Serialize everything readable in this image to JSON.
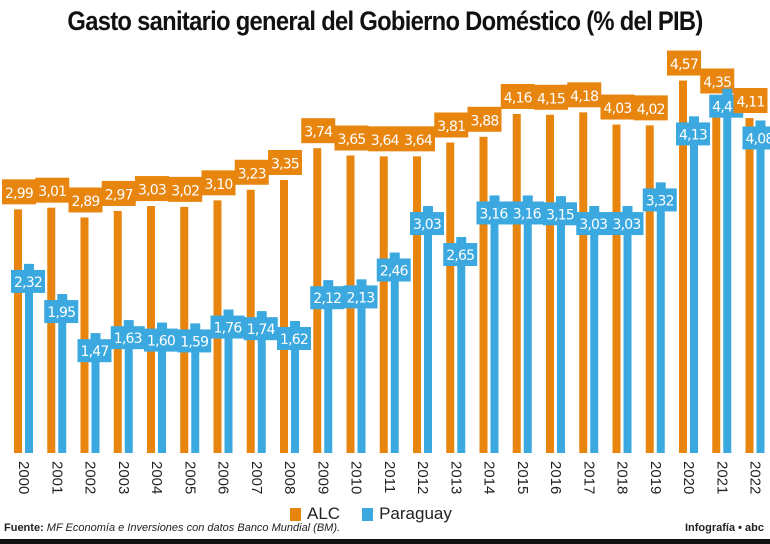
{
  "chart_data": {
    "type": "bar",
    "title": "Gasto sanitario general del Gobierno Doméstico (% del PIB)",
    "categories": [
      "2000",
      "2001",
      "2002",
      "2003",
      "2004",
      "2005",
      "2006",
      "2007",
      "2008",
      "2009",
      "2010",
      "2011",
      "2012",
      "2013",
      "2014",
      "2015",
      "2016",
      "2017",
      "2018",
      "2019",
      "2020",
      "2021",
      "2022"
    ],
    "series": [
      {
        "name": "ALC",
        "color": "#E8850F",
        "values": [
          2.99,
          3.01,
          2.89,
          2.97,
          3.03,
          3.02,
          3.1,
          3.23,
          3.35,
          3.74,
          3.65,
          3.64,
          3.64,
          3.81,
          3.88,
          4.16,
          4.15,
          4.18,
          4.03,
          4.02,
          4.57,
          4.35,
          4.11
        ]
      },
      {
        "name": "Paraguay",
        "color": "#3BA9DF",
        "values": [
          2.32,
          1.95,
          1.47,
          1.63,
          1.6,
          1.59,
          1.76,
          1.74,
          1.62,
          2.12,
          2.13,
          2.46,
          3.03,
          2.65,
          3.16,
          3.16,
          3.15,
          3.03,
          3.03,
          3.32,
          4.13,
          4.47,
          4.08
        ]
      }
    ],
    "decimal_separator": ",",
    "ylim": [
      0,
      5
    ],
    "grid": false,
    "legend": "bottom"
  },
  "footer": {
    "source_label": "Fuente:",
    "source_text": "MF Economía e Inversiones con datos Banco Mundial (BM).",
    "credit": "Infografía • abc"
  }
}
